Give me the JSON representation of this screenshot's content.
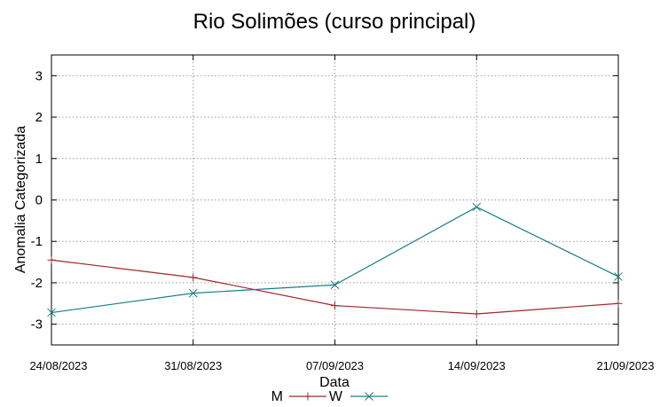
{
  "chart_data": {
    "type": "line",
    "title": "Rio Solimões (curso principal)",
    "xlabel": "Data",
    "ylabel": "Anomalia Categorizada",
    "x": [
      "24/08/2023",
      "31/08/2023",
      "07/09/2023",
      "14/09/2023",
      "21/09/2023"
    ],
    "yticks": [
      "3",
      "2",
      "1",
      "0",
      "-1",
      "-2",
      "-3"
    ],
    "ylim": [
      -3.5,
      3.5
    ],
    "grid": true,
    "legend_position": "bottom-center",
    "series": [
      {
        "name": "M",
        "color": "#a0262a",
        "marker": "plus",
        "values": [
          -1.45,
          -1.87,
          -2.55,
          -2.75,
          -2.5
        ]
      },
      {
        "name": "W",
        "color": "#177f85",
        "marker": "cross",
        "values": [
          -2.72,
          -2.25,
          -2.05,
          -0.17,
          -1.85
        ]
      }
    ]
  }
}
